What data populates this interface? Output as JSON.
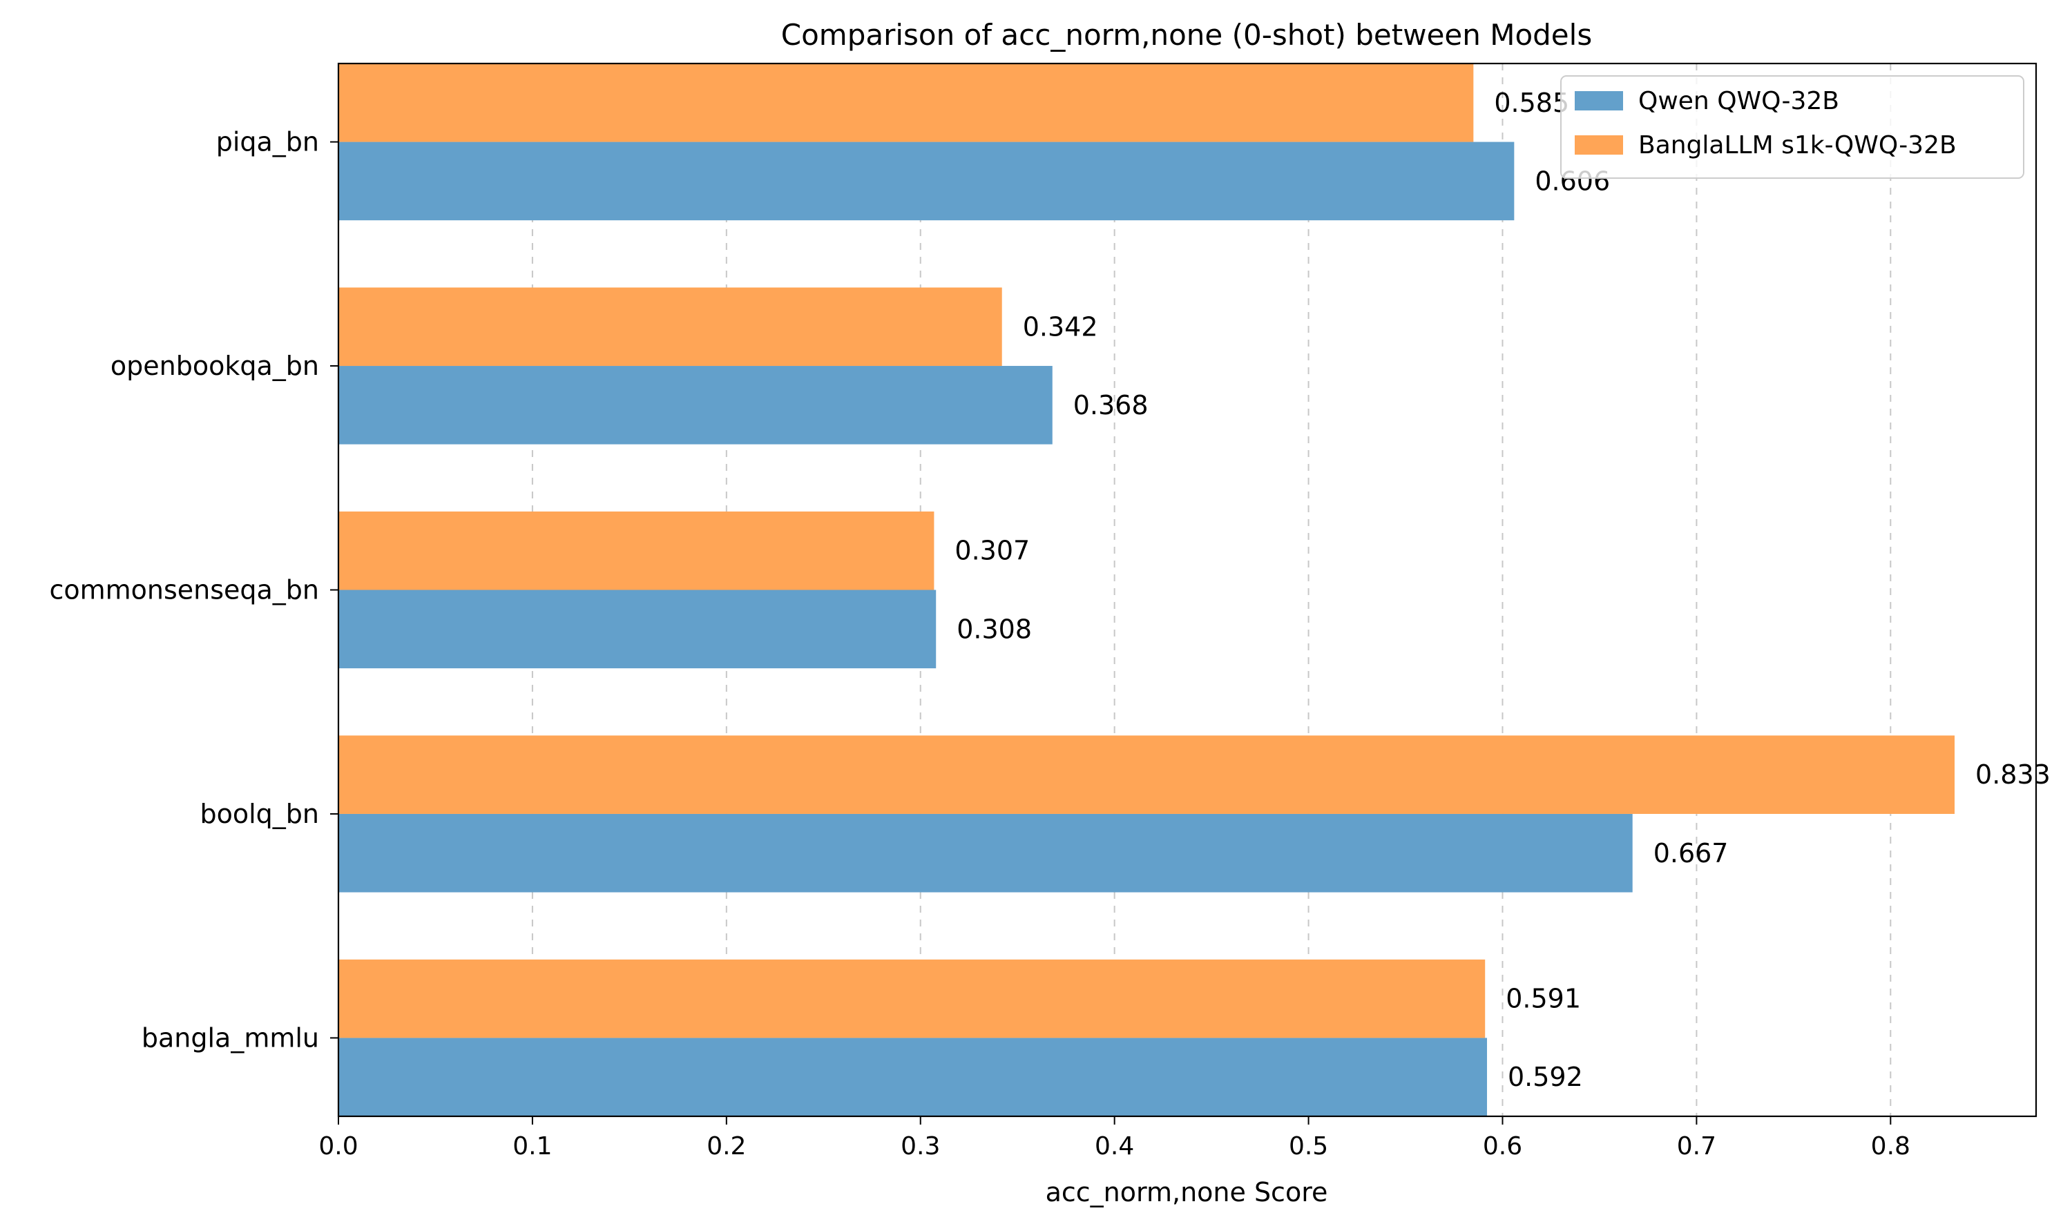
{
  "chart_data": {
    "type": "bar",
    "orientation": "horizontal",
    "title": "Comparison of acc_norm,none (0-shot) between Models",
    "xlabel": "acc_norm,none Score",
    "ylabel": "",
    "xlim": [
      0,
      0.875
    ],
    "xticks": [
      0.0,
      0.1,
      0.2,
      0.3,
      0.4,
      0.5,
      0.6,
      0.7,
      0.8
    ],
    "xtick_labels": [
      "0.0",
      "0.1",
      "0.2",
      "0.3",
      "0.4",
      "0.5",
      "0.6",
      "0.7",
      "0.8"
    ],
    "grid": "x-axis, dashed",
    "legend_position": "top-right",
    "categories": [
      "bangla_mmlu",
      "boolq_bn",
      "commonsenseqa_bn",
      "openbookqa_bn",
      "piqa_bn"
    ],
    "series": [
      {
        "name": "Qwen QWQ-32B",
        "color": "#63a0cb",
        "values": [
          0.592,
          0.667,
          0.308,
          0.368,
          0.606
        ],
        "labels": [
          "0.592",
          "0.667",
          "0.308",
          "0.368",
          "0.606"
        ]
      },
      {
        "name": "BanglaLLM s1k-QWQ-32B",
        "color": "#ffa556",
        "values": [
          0.591,
          0.833,
          0.307,
          0.342,
          0.585
        ],
        "labels": [
          "0.591",
          "0.833",
          "0.307",
          "0.342",
          "0.585"
        ]
      }
    ]
  }
}
